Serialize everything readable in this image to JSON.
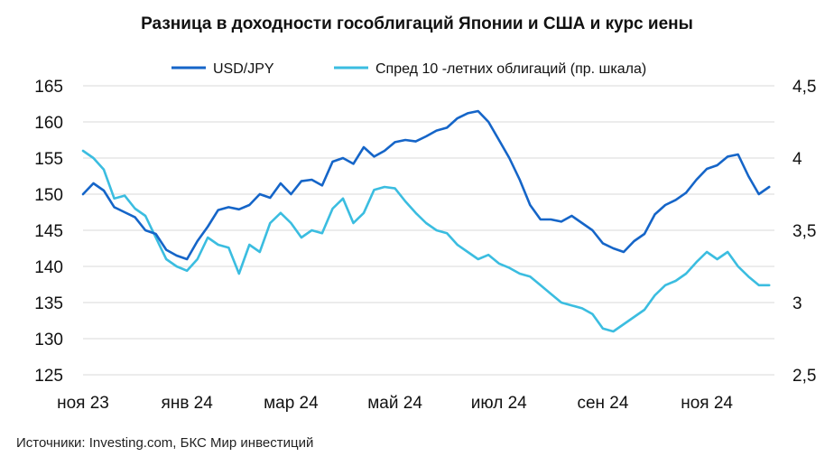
{
  "title": "Разница в доходности гособлигаций Японии и США и курс иены",
  "source": "Источники: Investing.com, БКС Мир инвестиций",
  "chart_data": {
    "type": "line",
    "title": "Разница в доходности гособлигаций Японии и США и курс иены",
    "legend_position": "top-center",
    "grid": true,
    "x_ticks": [
      "ноя 23",
      "янв 24",
      "мар 24",
      "май 24",
      "июл 24",
      "сен 24",
      "ноя 24"
    ],
    "x_range": [
      0,
      13.3
    ],
    "y_left": {
      "ticks": [
        "165",
        "160",
        "155",
        "150",
        "145",
        "140",
        "135",
        "130",
        "125"
      ],
      "range": [
        125,
        165
      ]
    },
    "y_right": {
      "ticks": [
        "4,5",
        "4",
        "3,5",
        "3",
        "2,5"
      ],
      "range": [
        2.5,
        4.5
      ]
    },
    "series": [
      {
        "name": "USD/JPY",
        "axis": "left",
        "color": "#1565c8",
        "x": [
          0.0,
          0.2,
          0.4,
          0.6,
          0.8,
          1.0,
          1.2,
          1.4,
          1.6,
          1.8,
          2.0,
          2.2,
          2.4,
          2.6,
          2.8,
          3.0,
          3.2,
          3.4,
          3.6,
          3.8,
          4.0,
          4.2,
          4.4,
          4.6,
          4.8,
          5.0,
          5.2,
          5.4,
          5.6,
          5.8,
          6.0,
          6.2,
          6.4,
          6.6,
          6.8,
          7.0,
          7.2,
          7.4,
          7.6,
          7.8,
          8.0,
          8.2,
          8.4,
          8.6,
          8.8,
          9.0,
          9.2,
          9.4,
          9.6,
          9.8,
          10.0,
          10.2,
          10.4,
          10.6,
          10.8,
          11.0,
          11.2,
          11.4,
          11.6,
          11.8,
          12.0,
          12.2,
          12.4,
          12.6,
          12.8,
          13.0,
          13.2
        ],
        "values": [
          150.0,
          151.5,
          150.5,
          148.2,
          147.5,
          146.8,
          145.0,
          144.5,
          142.3,
          141.5,
          141.0,
          143.5,
          145.5,
          147.8,
          148.2,
          147.9,
          148.5,
          150.0,
          149.5,
          151.5,
          150.0,
          151.8,
          152.0,
          151.2,
          154.5,
          155.0,
          154.2,
          156.5,
          155.2,
          156.0,
          157.2,
          157.5,
          157.3,
          158.0,
          158.8,
          159.2,
          160.5,
          161.2,
          161.5,
          160.0,
          157.5,
          155.0,
          152.0,
          148.5,
          146.5,
          146.5,
          146.2,
          147.0,
          146.0,
          145.0,
          143.2,
          142.5,
          142.0,
          143.5,
          144.5,
          147.2,
          148.5,
          149.2,
          150.2,
          152.0,
          153.5,
          154.0,
          155.2,
          155.5,
          152.5,
          150.0,
          151.0
        ]
      },
      {
        "name": "Спред 10 -летних облигаций (пр. шкала)",
        "axis": "right",
        "color": "#3bbde0",
        "x": [
          0.0,
          0.2,
          0.4,
          0.6,
          0.8,
          1.0,
          1.2,
          1.4,
          1.6,
          1.8,
          2.0,
          2.2,
          2.4,
          2.6,
          2.8,
          3.0,
          3.2,
          3.4,
          3.6,
          3.8,
          4.0,
          4.2,
          4.4,
          4.6,
          4.8,
          5.0,
          5.2,
          5.4,
          5.6,
          5.8,
          6.0,
          6.2,
          6.4,
          6.6,
          6.8,
          7.0,
          7.2,
          7.4,
          7.6,
          7.8,
          8.0,
          8.2,
          8.4,
          8.6,
          8.8,
          9.0,
          9.2,
          9.4,
          9.6,
          9.8,
          10.0,
          10.2,
          10.4,
          10.6,
          10.8,
          11.0,
          11.2,
          11.4,
          11.6,
          11.8,
          12.0,
          12.2,
          12.4,
          12.6,
          12.8,
          13.0,
          13.2
        ],
        "values": [
          4.05,
          4.0,
          3.92,
          3.72,
          3.74,
          3.65,
          3.6,
          3.45,
          3.3,
          3.25,
          3.22,
          3.3,
          3.45,
          3.4,
          3.38,
          3.2,
          3.4,
          3.35,
          3.55,
          3.62,
          3.55,
          3.45,
          3.5,
          3.48,
          3.65,
          3.72,
          3.55,
          3.62,
          3.78,
          3.8,
          3.79,
          3.7,
          3.62,
          3.55,
          3.5,
          3.48,
          3.4,
          3.35,
          3.3,
          3.33,
          3.27,
          3.24,
          3.2,
          3.18,
          3.12,
          3.06,
          3.0,
          2.98,
          2.96,
          2.92,
          2.82,
          2.8,
          2.85,
          2.9,
          2.95,
          3.05,
          3.12,
          3.15,
          3.2,
          3.28,
          3.35,
          3.3,
          3.35,
          3.25,
          3.18,
          3.12,
          3.12
        ]
      }
    ]
  }
}
